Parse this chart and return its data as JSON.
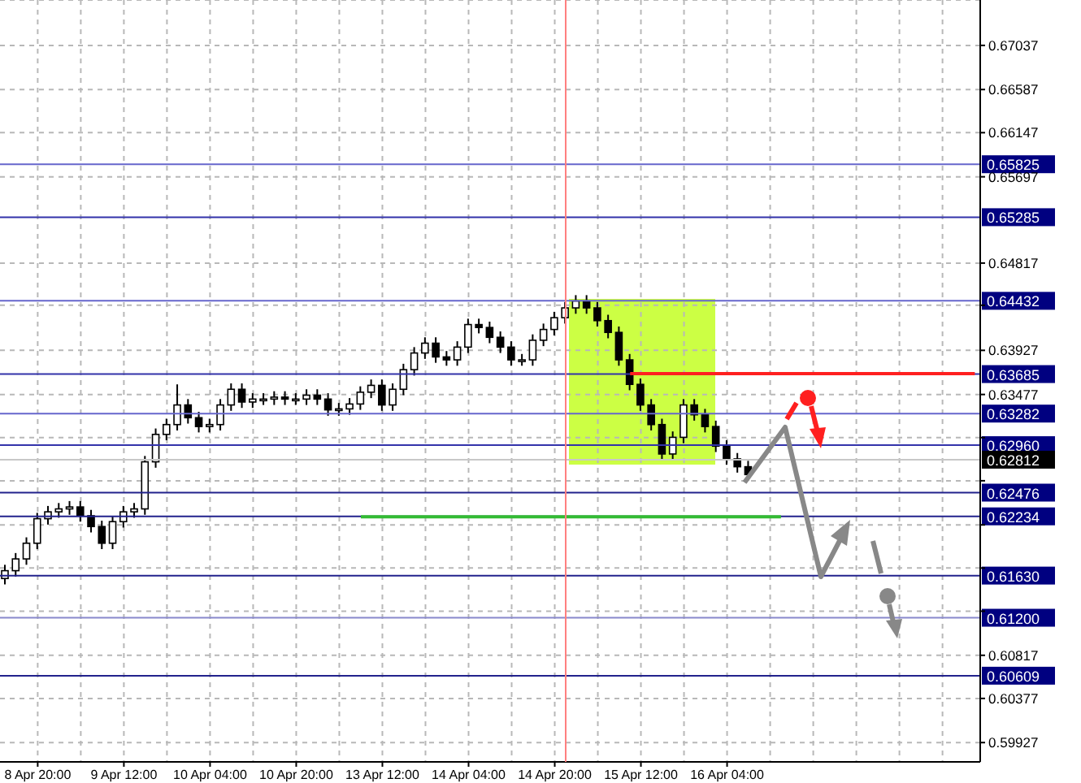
{
  "chart_data": {
    "type": "candlestick",
    "color": "#000000",
    "categories": [
      null,
      null,
      null,
      "8 Apr 20:00",
      null,
      null,
      null,
      null,
      null,
      null,
      null,
      "9 Apr 12:00",
      null,
      null,
      null,
      null,
      null,
      null,
      null,
      "10 Apr 04:00",
      null,
      null,
      null,
      null,
      null,
      null,
      null,
      "10 Apr 20:00",
      null,
      null,
      null,
      null,
      null,
      null,
      null,
      "13 Apr 12:00",
      null,
      null,
      null,
      null,
      null,
      null,
      null,
      "14 Apr 04:00",
      null,
      null,
      null,
      null,
      null,
      null,
      null,
      "14 Apr 20:00",
      null,
      null,
      null,
      null,
      null,
      null,
      null,
      "15 Apr 12:00",
      null,
      null,
      null,
      null,
      null,
      null,
      null,
      "16 Apr 04:00",
      null,
      null,
      null,
      null,
      null,
      null,
      null,
      null,
      null,
      null,
      null,
      null,
      null,
      null,
      null,
      null,
      null,
      null,
      null,
      null,
      null,
      null,
      null
    ],
    "ohlc": [
      [
        0.616,
        0.6174,
        0.6154,
        0.6168
      ],
      [
        0.6168,
        0.6186,
        0.6162,
        0.618
      ],
      [
        0.618,
        0.6202,
        0.6174,
        0.6196
      ],
      [
        0.6196,
        0.6227,
        0.619,
        0.6221
      ],
      [
        0.6221,
        0.6234,
        0.6215,
        0.6228
      ],
      [
        0.6228,
        0.6237,
        0.6222,
        0.6231
      ],
      [
        0.6231,
        0.6239,
        0.6225,
        0.6233
      ],
      [
        0.6233,
        0.6239,
        0.6218,
        0.6224
      ],
      [
        0.6224,
        0.623,
        0.6207,
        0.6213
      ],
      [
        0.6213,
        0.6219,
        0.619,
        0.6196
      ],
      [
        0.6196,
        0.6224,
        0.619,
        0.6218
      ],
      [
        0.6218,
        0.6234,
        0.6212,
        0.6228
      ],
      [
        0.6228,
        0.6237,
        0.6222,
        0.6231
      ],
      [
        0.6231,
        0.6285,
        0.6225,
        0.6279
      ],
      [
        0.6279,
        0.6313,
        0.6273,
        0.6307
      ],
      [
        0.6307,
        0.6323,
        0.6301,
        0.6317
      ],
      [
        0.6317,
        0.6358,
        0.6311,
        0.6337
      ],
      [
        0.6337,
        0.6343,
        0.6318,
        0.6324
      ],
      [
        0.6324,
        0.633,
        0.6309,
        0.6315
      ],
      [
        0.6315,
        0.6323,
        0.6309,
        0.6317
      ],
      [
        0.6317,
        0.6343,
        0.6311,
        0.6337
      ],
      [
        0.6337,
        0.6359,
        0.6331,
        0.6353
      ],
      [
        0.6353,
        0.6359,
        0.6334,
        0.634
      ],
      [
        0.634,
        0.6349,
        0.6334,
        0.6343
      ],
      [
        0.6343,
        0.6349,
        0.6337,
        0.6343
      ],
      [
        0.6343,
        0.6351,
        0.6337,
        0.6345
      ],
      [
        0.6345,
        0.6351,
        0.6337,
        0.6343
      ],
      [
        0.6343,
        0.6349,
        0.6337,
        0.6343
      ],
      [
        0.6343,
        0.6353,
        0.6337,
        0.6347
      ],
      [
        0.6347,
        0.6353,
        0.6337,
        0.6343
      ],
      [
        0.6343,
        0.6349,
        0.6326,
        0.6332
      ],
      [
        0.6332,
        0.6339,
        0.6326,
        0.6333
      ],
      [
        0.6333,
        0.6344,
        0.6327,
        0.6338
      ],
      [
        0.6338,
        0.6356,
        0.6332,
        0.635
      ],
      [
        0.635,
        0.6363,
        0.6344,
        0.6357
      ],
      [
        0.6357,
        0.6363,
        0.6331,
        0.6337
      ],
      [
        0.6337,
        0.6359,
        0.6331,
        0.6353
      ],
      [
        0.6353,
        0.6379,
        0.6347,
        0.6373
      ],
      [
        0.6373,
        0.6396,
        0.6367,
        0.639
      ],
      [
        0.639,
        0.6406,
        0.6384,
        0.64
      ],
      [
        0.64,
        0.6406,
        0.638,
        0.6386
      ],
      [
        0.6386,
        0.6392,
        0.6377,
        0.6383
      ],
      [
        0.6383,
        0.6402,
        0.6377,
        0.6396
      ],
      [
        0.6396,
        0.6425,
        0.639,
        0.6419
      ],
      [
        0.6419,
        0.6425,
        0.641,
        0.6416
      ],
      [
        0.6416,
        0.6422,
        0.64,
        0.6406
      ],
      [
        0.6406,
        0.6412,
        0.639,
        0.6396
      ],
      [
        0.6396,
        0.6402,
        0.6377,
        0.6383
      ],
      [
        0.6383,
        0.6389,
        0.6377,
        0.6383
      ],
      [
        0.6383,
        0.6409,
        0.6377,
        0.6403
      ],
      [
        0.6403,
        0.642,
        0.6397,
        0.6414
      ],
      [
        0.6414,
        0.6432,
        0.6408,
        0.6426
      ],
      [
        0.6426,
        0.6442,
        0.642,
        0.6436
      ],
      [
        0.6436,
        0.6449,
        0.643,
        0.6443
      ],
      [
        0.6443,
        0.6449,
        0.643,
        0.6436
      ],
      [
        0.6436,
        0.6442,
        0.6417,
        0.6423
      ],
      [
        0.6423,
        0.6429,
        0.6405,
        0.6411
      ],
      [
        0.6411,
        0.6417,
        0.6377,
        0.6383
      ],
      [
        0.6383,
        0.6389,
        0.6352,
        0.6358
      ],
      [
        0.6358,
        0.6364,
        0.6331,
        0.6337
      ],
      [
        0.6337,
        0.6343,
        0.6311,
        0.6317
      ],
      [
        0.6317,
        0.6323,
        0.6281,
        0.6287
      ],
      [
        0.6287,
        0.631,
        0.6281,
        0.6304
      ],
      [
        0.6304,
        0.6343,
        0.6298,
        0.6337
      ],
      [
        0.6337,
        0.6343,
        0.6321,
        0.6327
      ],
      [
        0.6327,
        0.6333,
        0.6309,
        0.6315
      ],
      [
        0.6315,
        0.6321,
        0.6289,
        0.6295
      ],
      [
        0.6295,
        0.6301,
        0.6276,
        0.6282
      ],
      [
        0.6282,
        0.6288,
        0.6268,
        0.6274
      ],
      [
        0.6274,
        0.628,
        0.626,
        0.6266
      ],
      null,
      null,
      null,
      null,
      null,
      null,
      null,
      null,
      null,
      null,
      null,
      null,
      null,
      null,
      null,
      null,
      null,
      null,
      null,
      null,
      null
    ],
    "ylim": [
      0.5973,
      0.675
    ],
    "yticks": [
      0.59927,
      0.60377,
      0.60817,
      {
        "value": 0.61267,
        "label": null
      },
      {
        "value": 0.61707,
        "label": null
      },
      {
        "value": 0.62147,
        "label": null
      },
      {
        "value": 0.62597,
        "label": null
      },
      {
        "value": 0.63037,
        "label": null
      },
      0.63477,
      0.63927,
      {
        "value": 0.64387,
        "label": null
      },
      0.64817,
      0.65697,
      0.66147,
      0.66587,
      0.67037
    ],
    "grid": true,
    "ref_lines": [
      {
        "axis": "y",
        "value": 0.65825,
        "label": "0.65825",
        "color": "#6666cc"
      },
      {
        "axis": "y",
        "value": 0.65285,
        "label": "0.65285",
        "color": "#3333aa"
      },
      {
        "axis": "y",
        "value": 0.64432,
        "label": "0.64432",
        "color": "#6666cc"
      },
      {
        "axis": "y",
        "value": 0.63685,
        "label": "0.63685",
        "color": "#3333aa"
      },
      {
        "axis": "y",
        "value": 0.63282,
        "label": "0.63282",
        "color": "#6666cc"
      },
      {
        "axis": "y",
        "value": 0.6296,
        "label": "0.62960",
        "color": "#3333aa"
      },
      {
        "axis": "y",
        "value": 0.62812,
        "label": "0.62812",
        "color": "#c8c8c8"
      },
      {
        "axis": "y",
        "value": 0.62476,
        "label": "0.62476",
        "color": "#22228c"
      },
      {
        "axis": "y",
        "value": 0.62234,
        "label": "0.62234",
        "color": "#22228c"
      },
      {
        "axis": "y",
        "value": 0.6163,
        "label": "0.61630",
        "color": "#22228c"
      },
      {
        "axis": "y",
        "value": 0.612,
        "label": "0.61200",
        "color": "#8888cc"
      },
      {
        "axis": "y",
        "value": 0.60609,
        "label": "0.60609",
        "color": "#22228c"
      }
    ],
    "series": [
      {
        "type": "line",
        "color": "#ff2020",
        "values": [
          null,
          null,
          null,
          null,
          null,
          null,
          null,
          null,
          null,
          null,
          null,
          null,
          null,
          null,
          null,
          null,
          null,
          null,
          null,
          null,
          null,
          null,
          null,
          null,
          null,
          null,
          null,
          null,
          null,
          null,
          null,
          null,
          null,
          null,
          null,
          null,
          null,
          null,
          null,
          null,
          null,
          null,
          null,
          null,
          null,
          null,
          null,
          null,
          null,
          null,
          null,
          null,
          null,
          null,
          null,
          null,
          null,
          null,
          0.6369,
          0.6369,
          0.6369,
          0.6369,
          0.6369,
          0.6369,
          0.6369,
          0.6369,
          0.6369,
          0.6369,
          0.6369,
          0.6369,
          0.6369,
          0.6369,
          0.6369,
          0.6369,
          0.6369,
          0.6369,
          0.6369,
          0.6369,
          0.6369,
          0.6369,
          0.6369,
          0.6369,
          0.6369,
          0.6369,
          0.6369,
          0.6369,
          0.6369,
          0.6369,
          0.6369,
          0.6369,
          0.6369
        ]
      },
      {
        "type": "line",
        "color": "#33bb33",
        "values": [
          null,
          null,
          null,
          null,
          null,
          null,
          null,
          null,
          null,
          null,
          null,
          null,
          null,
          null,
          null,
          null,
          null,
          null,
          null,
          null,
          null,
          null,
          null,
          null,
          null,
          null,
          null,
          null,
          null,
          null,
          null,
          null,
          null,
          0.6223,
          0.6223,
          0.6223,
          0.6223,
          0.6223,
          0.6223,
          0.6223,
          0.6223,
          0.6223,
          0.6223,
          0.6223,
          0.6223,
          0.6223,
          0.6223,
          0.6223,
          0.6223,
          0.6223,
          0.6223,
          0.6223,
          0.6223,
          0.6223,
          0.6223,
          0.6223,
          0.6223,
          0.6223,
          0.6223,
          0.6223,
          0.6223,
          0.6223,
          0.6223,
          0.6223,
          0.6223,
          0.6223,
          0.6223,
          0.6223,
          0.6223,
          0.6223,
          0.6223,
          0.6223,
          0.6223,
          null,
          null,
          null,
          null,
          null,
          null,
          null,
          null,
          null,
          null,
          null,
          null,
          null,
          null,
          null,
          null,
          null,
          null
        ]
      }
    ]
  }
}
